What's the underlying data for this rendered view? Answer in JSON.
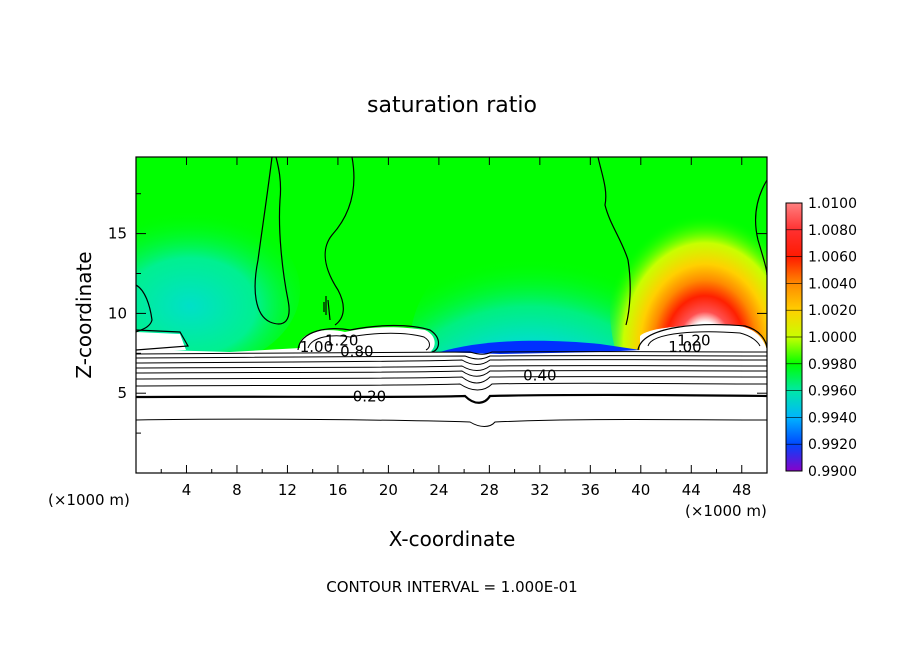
{
  "chart_data": {
    "type": "heatmap",
    "subtype": "filled-contour",
    "title": "saturation ratio",
    "xlabel": "X-coordinate",
    "ylabel": "Z-coordinate",
    "x_unit_note": "(×1000 m)",
    "y_unit_note": "(×1000 m)",
    "xlim": [
      0,
      50
    ],
    "ylim": [
      0,
      19.8
    ],
    "x_ticks": [
      "4",
      "8",
      "12",
      "16",
      "20",
      "24",
      "28",
      "32",
      "36",
      "40",
      "44",
      "48"
    ],
    "y_ticks": [
      "5",
      "10",
      "15"
    ],
    "footer": "CONTOUR INTERVAL = 1.000E-01",
    "colorbar": {
      "labels": [
        "1.0100",
        "1.0080",
        "1.0060",
        "1.0040",
        "1.0020",
        "1.0000",
        "0.9980",
        "0.9960",
        "0.9940",
        "0.9920",
        "0.9900"
      ],
      "colors": [
        "#ff8080",
        "#ff3030",
        "#ff1a00",
        "#ff8a00",
        "#ffd000",
        "#c8ff00",
        "#00ff00",
        "#00e8a8",
        "#00b4ff",
        "#0046ff",
        "#8a00c8"
      ]
    },
    "contour_labels": [
      {
        "text": "0.20",
        "x": 18.5,
        "y": 4.8
      },
      {
        "text": "0.40",
        "x": 32.0,
        "y": 6.1
      },
      {
        "text": "0.80",
        "x": 17.5,
        "y": 7.6
      },
      {
        "text": "1.00",
        "x": 14.3,
        "y": 7.9
      },
      {
        "text": "1.20",
        "x": 16.3,
        "y": 8.3
      },
      {
        "text": "1.00",
        "x": 43.5,
        "y": 7.9
      },
      {
        "text": "1.20",
        "x": 44.2,
        "y": 8.3
      }
    ],
    "grid": false,
    "legend": "colorbar-right"
  }
}
